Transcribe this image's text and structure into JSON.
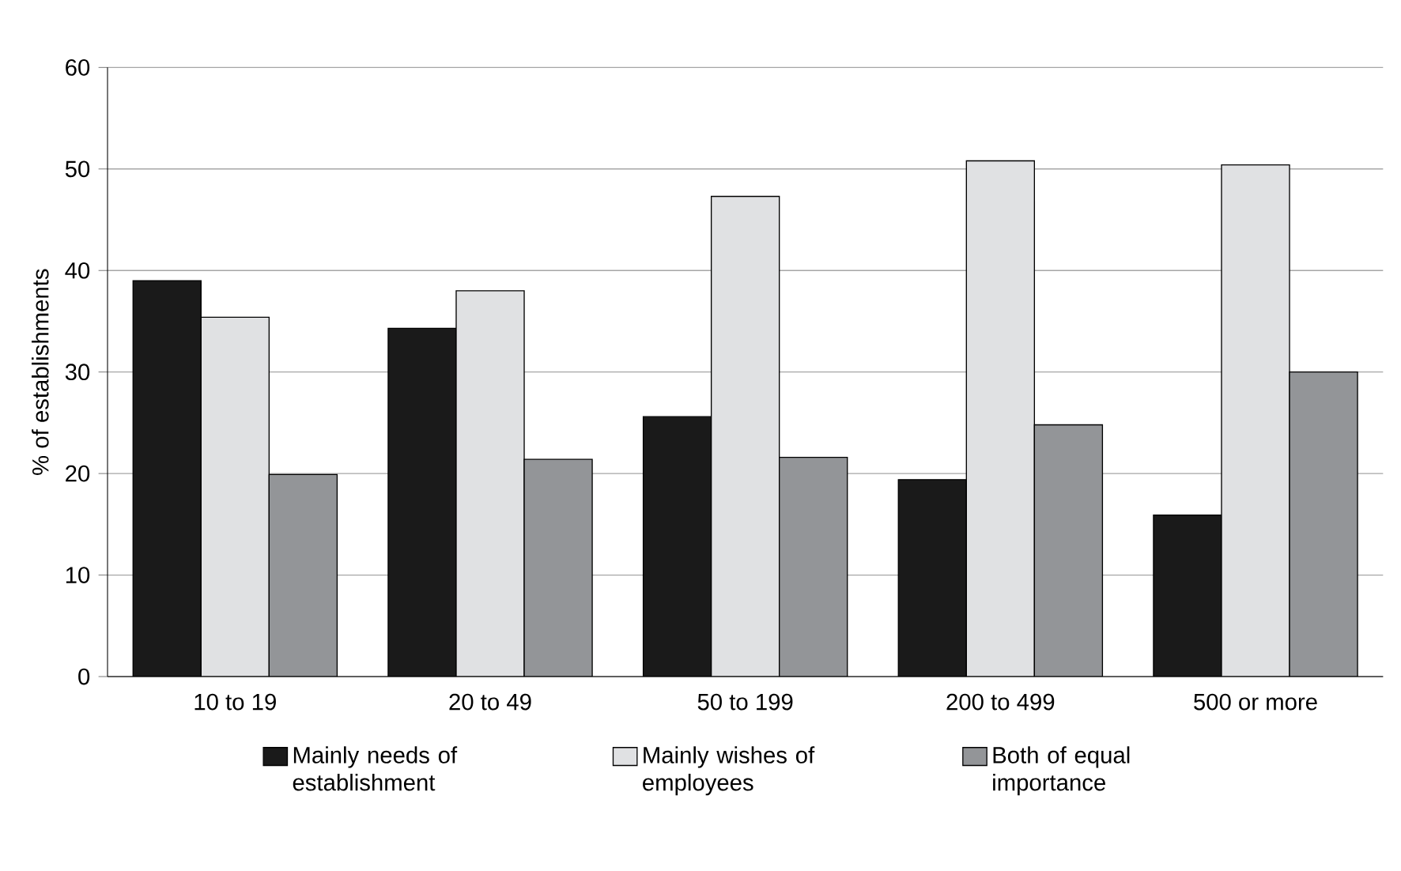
{
  "chart_data": {
    "type": "bar",
    "ylabel": "% of establishments",
    "categories": [
      "10 to 19",
      "20 to 49",
      "50 to 199",
      "200 to 499",
      "500 or more"
    ],
    "series": [
      {
        "name": "Mainly needs of establishment",
        "color": "#1a1a1a",
        "values": [
          39,
          34.3,
          25.6,
          19.4,
          15.9
        ]
      },
      {
        "name": "Mainly wishes of employees",
        "color": "#e0e1e3",
        "values": [
          35.4,
          38,
          47.3,
          50.8,
          50.4
        ]
      },
      {
        "name": "Both of equal importance",
        "color": "#939598",
        "values": [
          19.9,
          21.4,
          21.6,
          24.8,
          30
        ]
      }
    ],
    "ylim": [
      0,
      60
    ],
    "yticks": [
      0,
      10,
      20,
      30,
      40,
      50,
      60
    ],
    "grid": "y",
    "legend": "bottom"
  }
}
